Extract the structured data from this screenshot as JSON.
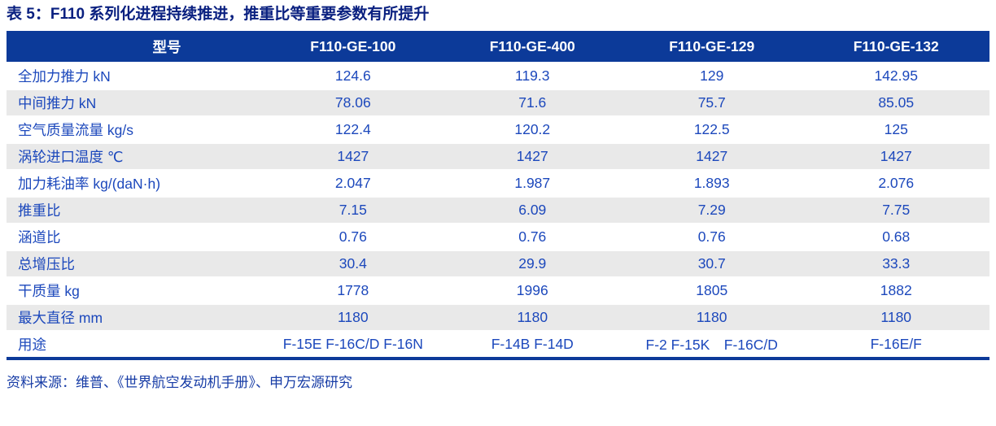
{
  "title": "表 5：F110 系列化进程持续推进，推重比等重要参数有所提升",
  "source_note": "资料来源：维普、《世界航空发动机手册》、申万宏源研究",
  "colors": {
    "title_text": "#0a2080",
    "header_bg": "#0c3a99",
    "header_text": "#ffffff",
    "cell_text": "#1c48bc",
    "alt_row_bg": "#e9e9e9",
    "bottom_rule": "#0c3a99"
  },
  "table": {
    "columns": [
      "型号",
      "F110-GE-100",
      "F110-GE-400",
      "F110-GE-129",
      "F110-GE-132"
    ],
    "rows": [
      {
        "label": "全加力推力 kN",
        "values": [
          "124.6",
          "119.3",
          "129",
          "142.95"
        ]
      },
      {
        "label": "中间推力 kN",
        "values": [
          "78.06",
          "71.6",
          "75.7",
          "85.05"
        ]
      },
      {
        "label": "空气质量流量 kg/s",
        "values": [
          "122.4",
          "120.2",
          "122.5",
          "125"
        ]
      },
      {
        "label": "涡轮进口温度 ℃",
        "values": [
          "1427",
          "1427",
          "1427",
          "1427"
        ]
      },
      {
        "label": "加力耗油率 kg/(daN·h)",
        "values": [
          "2.047",
          "1.987",
          "1.893",
          "2.076"
        ]
      },
      {
        "label": "推重比",
        "values": [
          "7.15",
          "6.09",
          "7.29",
          "7.75"
        ]
      },
      {
        "label": "涵道比",
        "values": [
          "0.76",
          "0.76",
          "0.76",
          "0.68"
        ]
      },
      {
        "label": "总增压比",
        "values": [
          "30.4",
          "29.9",
          "30.7",
          "33.3"
        ]
      },
      {
        "label": "干质量 kg",
        "values": [
          "1778",
          "1996",
          "1805",
          "1882"
        ]
      },
      {
        "label": "最大直径 mm",
        "values": [
          "1180",
          "1180",
          "1180",
          "1180"
        ]
      },
      {
        "label": "用途",
        "values": [
          "F-15E F-16C/D F-16N",
          "F-14B F-14D",
          "F-2 F-15K　F-16C/D",
          "F-16E/F"
        ]
      }
    ]
  }
}
